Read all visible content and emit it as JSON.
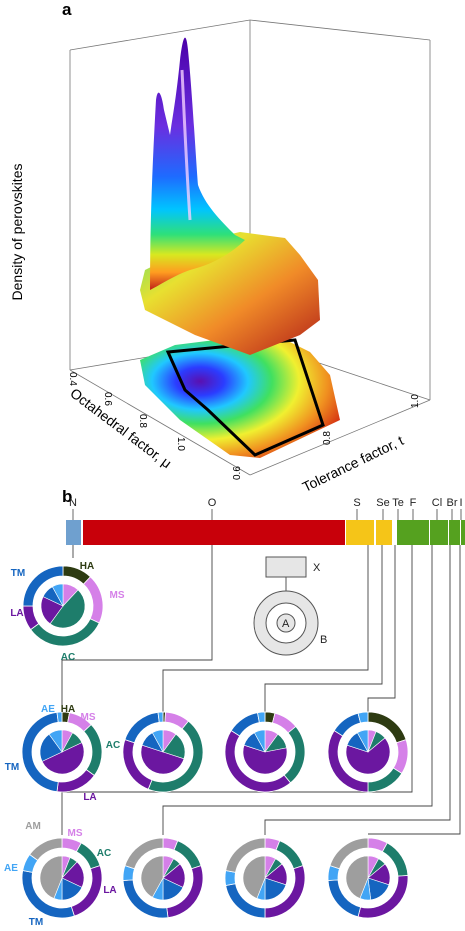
{
  "panel_a": {
    "label": "a",
    "z_axis_title": "Density of perovskites",
    "x_axis_title": "Octahedral factor, μ",
    "y_axis_title": "Tolerance factor, t",
    "x_ticks": [
      "0.4",
      "0.6",
      "0.8",
      "1.0"
    ],
    "y_ticks": [
      "0.6",
      "0.8",
      "1.0"
    ]
  },
  "panel_b": {
    "label": "b",
    "elements": [
      {
        "symbol": "N",
        "color": "#6fa0cf"
      },
      {
        "symbol": "O",
        "color": "#c8000a"
      },
      {
        "symbol": "S",
        "color": "#f5c518"
      },
      {
        "symbol": "Se",
        "color": "#f5c518"
      },
      {
        "symbol": "Te",
        "color": "#f5c518"
      },
      {
        "symbol": "F",
        "color": "#55a11f"
      },
      {
        "symbol": "Cl",
        "color": "#55a11f"
      },
      {
        "symbol": "Br",
        "color": "#55a11f"
      },
      {
        "symbol": "I",
        "color": "#55a11f"
      }
    ],
    "legend": {
      "x_label": "X",
      "a_label": "A",
      "b_label": "B"
    },
    "class_colors": {
      "HA": "#2e3b12",
      "MS": "#d580e8",
      "AC": "#1e7d6b",
      "LA": "#6b17a0",
      "TM": "#1565c0",
      "AE": "#42a5f5",
      "AM": "#9e9e9e"
    },
    "donut_labels_N": [
      "HA",
      "MS",
      "AC",
      "LA",
      "TM"
    ],
    "donut_labels_O": [
      "AE",
      "HA",
      "MS",
      "AC",
      "LA",
      "TM"
    ],
    "donut_labels_F": [
      "AM",
      "MS",
      "AC",
      "LA",
      "TM",
      "AE"
    ]
  }
}
